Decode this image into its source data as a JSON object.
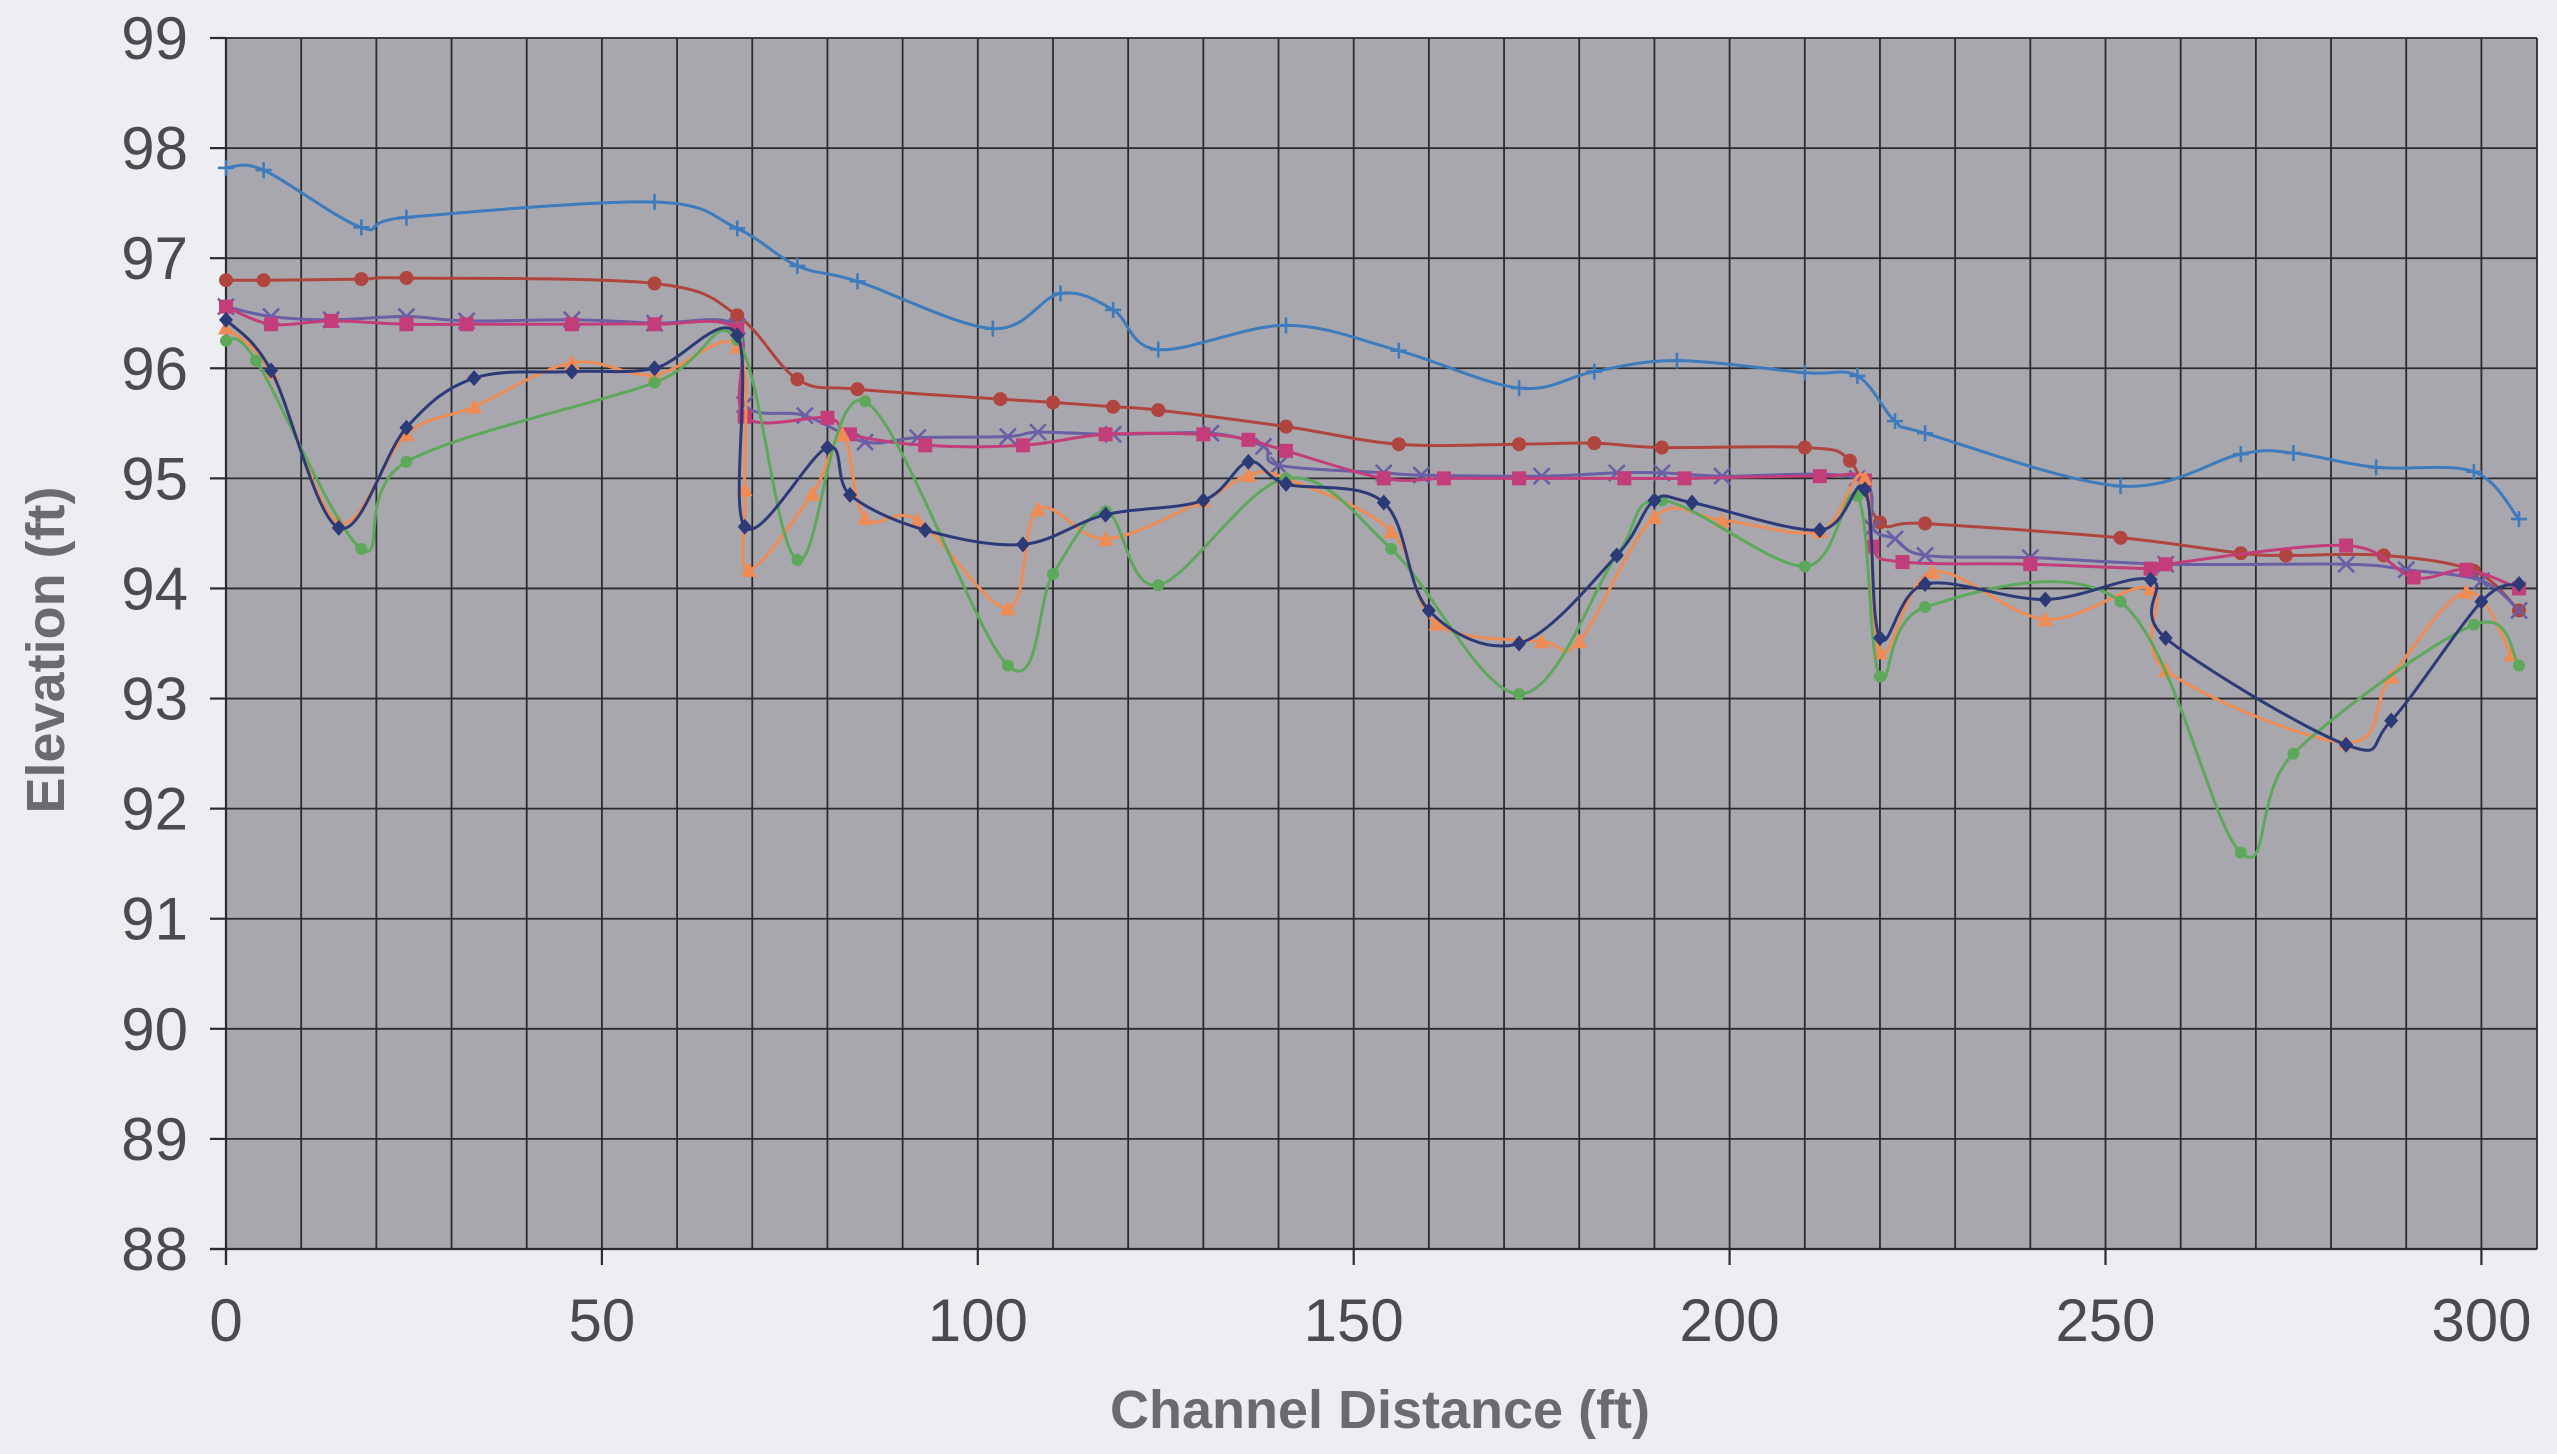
{
  "chart_data": {
    "type": "line",
    "title": "",
    "xlabel": "Channel Distance (ft)",
    "ylabel": "Elevation (ft)",
    "xlim": [
      0,
      305
    ],
    "ylim": [
      88,
      99
    ],
    "x_ticks": [
      "0",
      "50",
      "100",
      "150",
      "200",
      "250",
      "300"
    ],
    "y_ticks": [
      "88",
      "89",
      "90",
      "91",
      "92",
      "93",
      "94",
      "95",
      "96",
      "97",
      "98",
      "99"
    ],
    "grid": true,
    "legend": "none",
    "plot_background": "#a8a7ae",
    "series": [
      {
        "color": "#3d7bbd",
        "marker": "plus",
        "points": [
          [
            0,
            97.82
          ],
          [
            5,
            97.8
          ],
          [
            18,
            97.28
          ],
          [
            24,
            97.37
          ],
          [
            57,
            97.51
          ],
          [
            68,
            97.27
          ],
          [
            76,
            96.93
          ],
          [
            84,
            96.79
          ],
          [
            102,
            96.36
          ],
          [
            111,
            96.68
          ],
          [
            118,
            96.53
          ],
          [
            124,
            96.17
          ],
          [
            141,
            96.39
          ],
          [
            156,
            96.16
          ],
          [
            172,
            95.82
          ],
          [
            182,
            95.97
          ],
          [
            193,
            96.07
          ],
          [
            210,
            95.96
          ],
          [
            217,
            95.93
          ],
          [
            222,
            95.52
          ],
          [
            226,
            95.41
          ],
          [
            252,
            94.93
          ],
          [
            268,
            95.22
          ],
          [
            275,
            95.23
          ],
          [
            286,
            95.1
          ],
          [
            299,
            95.06
          ],
          [
            305,
            94.63
          ]
        ]
      },
      {
        "color": "#b0453f",
        "marker": "circle",
        "points": [
          [
            0,
            96.8
          ],
          [
            5,
            96.8
          ],
          [
            18,
            96.81
          ],
          [
            24,
            96.82
          ],
          [
            57,
            96.77
          ],
          [
            68,
            96.48
          ],
          [
            76,
            95.9
          ],
          [
            84,
            95.81
          ],
          [
            103,
            95.72
          ],
          [
            110,
            95.69
          ],
          [
            118,
            95.65
          ],
          [
            124,
            95.62
          ],
          [
            141,
            95.47
          ],
          [
            156,
            95.31
          ],
          [
            172,
            95.31
          ],
          [
            182,
            95.32
          ],
          [
            191,
            95.28
          ],
          [
            210,
            95.28
          ],
          [
            216,
            95.16
          ],
          [
            220,
            94.6
          ],
          [
            226,
            94.59
          ],
          [
            252,
            94.46
          ],
          [
            268,
            94.32
          ],
          [
            274,
            94.3
          ],
          [
            287,
            94.3
          ],
          [
            299,
            94.16
          ],
          [
            305,
            93.8
          ]
        ]
      },
      {
        "color": "#6a5fa5",
        "marker": "x",
        "points": [
          [
            0,
            96.56
          ],
          [
            6,
            96.47
          ],
          [
            14,
            96.44
          ],
          [
            24,
            96.47
          ],
          [
            32,
            96.43
          ],
          [
            46,
            96.44
          ],
          [
            57,
            96.41
          ],
          [
            68,
            96.38
          ],
          [
            69,
            95.67
          ],
          [
            77,
            95.57
          ],
          [
            85,
            95.33
          ],
          [
            92,
            95.37
          ],
          [
            104,
            95.38
          ],
          [
            108,
            95.42
          ],
          [
            118,
            95.4
          ],
          [
            131,
            95.41
          ],
          [
            138,
            95.29
          ],
          [
            140,
            95.12
          ],
          [
            154,
            95.05
          ],
          [
            159,
            95.03
          ],
          [
            175,
            95.02
          ],
          [
            185,
            95.05
          ],
          [
            191,
            95.05
          ],
          [
            199,
            95.02
          ],
          [
            217,
            95.0
          ],
          [
            219,
            94.55
          ],
          [
            222,
            94.45
          ],
          [
            226,
            94.3
          ],
          [
            240,
            94.28
          ],
          [
            258,
            94.22
          ],
          [
            282,
            94.22
          ],
          [
            290,
            94.17
          ],
          [
            300,
            94.07
          ],
          [
            305,
            93.8
          ]
        ]
      },
      {
        "color": "#c33d7a",
        "marker": "square",
        "points": [
          [
            0,
            96.56
          ],
          [
            6,
            96.4
          ],
          [
            14,
            96.43
          ],
          [
            24,
            96.4
          ],
          [
            32,
            96.4
          ],
          [
            46,
            96.4
          ],
          [
            57,
            96.4
          ],
          [
            68,
            96.35
          ],
          [
            69,
            95.56
          ],
          [
            80,
            95.55
          ],
          [
            83,
            95.4
          ],
          [
            93,
            95.3
          ],
          [
            106,
            95.3
          ],
          [
            117,
            95.4
          ],
          [
            130,
            95.4
          ],
          [
            136,
            95.35
          ],
          [
            141,
            95.25
          ],
          [
            154,
            95.0
          ],
          [
            162,
            95.0
          ],
          [
            172,
            95.0
          ],
          [
            186,
            95.0
          ],
          [
            194,
            95.0
          ],
          [
            212,
            95.02
          ],
          [
            218,
            94.98
          ],
          [
            219,
            94.38
          ],
          [
            223,
            94.24
          ],
          [
            240,
            94.22
          ],
          [
            256,
            94.18
          ],
          [
            258,
            94.22
          ],
          [
            282,
            94.39
          ],
          [
            291,
            94.1
          ],
          [
            298,
            94.17
          ],
          [
            305,
            94.0
          ]
        ]
      },
      {
        "color": "#ef8c55",
        "marker": "triangle",
        "points": [
          [
            0,
            96.37
          ],
          [
            6,
            95.96
          ],
          [
            15,
            94.6
          ],
          [
            24,
            95.4
          ],
          [
            33,
            95.65
          ],
          [
            46,
            96.05
          ],
          [
            57,
            95.94
          ],
          [
            68,
            96.2
          ],
          [
            69,
            94.9
          ],
          [
            69.5,
            94.17
          ],
          [
            78,
            94.86
          ],
          [
            82,
            95.4
          ],
          [
            85,
            94.64
          ],
          [
            92,
            94.62
          ],
          [
            104,
            93.82
          ],
          [
            108,
            94.72
          ],
          [
            117,
            94.45
          ],
          [
            130,
            94.8
          ],
          [
            136,
            95.03
          ],
          [
            141,
            95.0
          ],
          [
            155,
            94.52
          ],
          [
            161,
            93.68
          ],
          [
            175,
            93.52
          ],
          [
            180,
            93.52
          ],
          [
            190,
            94.65
          ],
          [
            199,
            94.62
          ],
          [
            212,
            94.52
          ],
          [
            218,
            95.0
          ],
          [
            220,
            93.42
          ],
          [
            227,
            94.15
          ],
          [
            242,
            93.72
          ],
          [
            256,
            94.0
          ],
          [
            258,
            93.26
          ],
          [
            282,
            92.6
          ],
          [
            288,
            93.2
          ],
          [
            298,
            93.97
          ],
          [
            304,
            93.4
          ]
        ]
      },
      {
        "color": "#5ea85c",
        "marker": "circle-small",
        "points": [
          [
            0,
            96.25
          ],
          [
            4,
            96.07
          ],
          [
            18,
            94.36
          ],
          [
            24,
            95.15
          ],
          [
            57,
            95.87
          ],
          [
            68,
            96.26
          ],
          [
            76,
            94.26
          ],
          [
            85,
            95.7
          ],
          [
            104,
            93.3
          ],
          [
            110,
            94.13
          ],
          [
            117,
            94.7
          ],
          [
            124,
            94.03
          ],
          [
            141,
            95.0
          ],
          [
            155,
            94.36
          ],
          [
            172,
            93.04
          ],
          [
            185,
            94.3
          ],
          [
            191,
            94.8
          ],
          [
            210,
            94.2
          ],
          [
            217,
            94.84
          ],
          [
            220,
            93.2
          ],
          [
            226,
            93.83
          ],
          [
            252,
            93.88
          ],
          [
            268,
            91.6
          ],
          [
            275,
            92.5
          ],
          [
            299,
            93.67
          ],
          [
            305,
            93.3
          ]
        ]
      },
      {
        "color": "#2d3a78",
        "marker": "diamond",
        "points": [
          [
            0,
            96.44
          ],
          [
            6,
            95.98
          ],
          [
            15,
            94.55
          ],
          [
            24,
            95.46
          ],
          [
            33,
            95.91
          ],
          [
            46,
            95.97
          ],
          [
            57,
            96.0
          ],
          [
            68,
            96.3
          ],
          [
            69,
            94.56
          ],
          [
            80,
            95.28
          ],
          [
            83,
            94.85
          ],
          [
            93,
            94.53
          ],
          [
            106,
            94.4
          ],
          [
            117,
            94.67
          ],
          [
            130,
            94.8
          ],
          [
            136,
            95.15
          ],
          [
            141,
            94.95
          ],
          [
            154,
            94.78
          ],
          [
            160,
            93.8
          ],
          [
            172,
            93.5
          ],
          [
            185,
            94.3
          ],
          [
            190,
            94.8
          ],
          [
            195,
            94.78
          ],
          [
            212,
            94.53
          ],
          [
            218,
            94.9
          ],
          [
            220,
            93.55
          ],
          [
            226,
            94.04
          ],
          [
            242,
            93.9
          ],
          [
            256,
            94.08
          ],
          [
            258,
            93.55
          ],
          [
            282,
            92.58
          ],
          [
            288,
            92.8
          ],
          [
            300,
            93.88
          ],
          [
            305,
            94.04
          ]
        ]
      }
    ]
  }
}
